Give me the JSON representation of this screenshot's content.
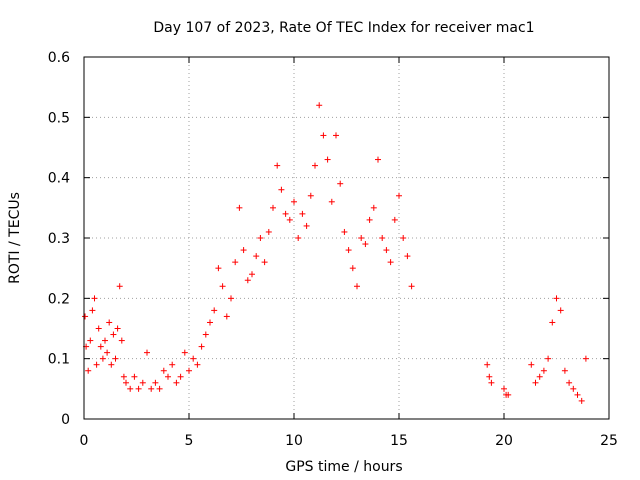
{
  "chart_data": {
    "type": "scatter",
    "title": "Day 107 of 2023, Rate Of TEC Index for receiver mac1",
    "xlabel": "GPS time / hours",
    "ylabel": "ROTI / TECUs",
    "xlim": [
      0,
      25
    ],
    "ylim": [
      0,
      0.6
    ],
    "xticks": [
      "0",
      "5",
      "10",
      "15",
      "20",
      "25"
    ],
    "yticks": [
      "0",
      "0.1",
      "0.2",
      "0.3",
      "0.4",
      "0.5",
      "0.6"
    ],
    "xtick_values": [
      0,
      5,
      10,
      15,
      20,
      25
    ],
    "ytick_values": [
      0,
      0.1,
      0.2,
      0.3,
      0.4,
      0.5,
      0.6
    ],
    "grid": true,
    "marker": "+",
    "color": "#ff0000",
    "series": [
      {
        "x": [
          0.05,
          0.1,
          0.2,
          0.3,
          0.4,
          0.5,
          0.6,
          0.7,
          0.8,
          0.9,
          1.0,
          1.1,
          1.2,
          1.3,
          1.4,
          1.5,
          1.6,
          1.7,
          1.8,
          1.9,
          2.0,
          2.2,
          2.4,
          2.6,
          2.8,
          3.0,
          3.2,
          3.4,
          3.6,
          3.8,
          4.0,
          4.2,
          4.4,
          4.6,
          4.8,
          5.0,
          5.2,
          5.4,
          5.6,
          5.8,
          6.0,
          6.2,
          6.4,
          6.6,
          6.8,
          7.0,
          7.2,
          7.4,
          7.6,
          7.8,
          8.0,
          8.2,
          8.4,
          8.6,
          8.8,
          9.0,
          9.2,
          9.4,
          9.6,
          9.8,
          10.0,
          10.2,
          10.4,
          10.6,
          10.8,
          11.0,
          11.2,
          11.4,
          11.6,
          11.8,
          12.0,
          12.2,
          12.4,
          12.6,
          12.8,
          13.0,
          13.2,
          13.4,
          13.6,
          13.8,
          14.0,
          14.2,
          14.4,
          14.6,
          14.8,
          15.0,
          15.2,
          15.4,
          15.6,
          19.2,
          19.3,
          19.4,
          20.0,
          20.1,
          20.2,
          21.3,
          21.5,
          21.7,
          21.9,
          22.1,
          22.3,
          22.5,
          22.7,
          22.9,
          23.1,
          23.3,
          23.5,
          23.7,
          23.9
        ],
        "y": [
          0.17,
          0.12,
          0.08,
          0.13,
          0.18,
          0.2,
          0.09,
          0.15,
          0.12,
          0.1,
          0.13,
          0.11,
          0.16,
          0.09,
          0.14,
          0.1,
          0.15,
          0.22,
          0.13,
          0.07,
          0.06,
          0.05,
          0.07,
          0.05,
          0.06,
          0.11,
          0.05,
          0.06,
          0.05,
          0.08,
          0.07,
          0.09,
          0.06,
          0.07,
          0.11,
          0.08,
          0.1,
          0.09,
          0.12,
          0.14,
          0.16,
          0.18,
          0.25,
          0.22,
          0.17,
          0.2,
          0.26,
          0.35,
          0.28,
          0.23,
          0.24,
          0.27,
          0.3,
          0.26,
          0.31,
          0.35,
          0.42,
          0.38,
          0.34,
          0.33,
          0.36,
          0.3,
          0.34,
          0.32,
          0.37,
          0.42,
          0.52,
          0.47,
          0.43,
          0.36,
          0.47,
          0.39,
          0.31,
          0.28,
          0.25,
          0.22,
          0.3,
          0.29,
          0.33,
          0.35,
          0.43,
          0.3,
          0.28,
          0.26,
          0.33,
          0.37,
          0.3,
          0.27,
          0.22,
          0.09,
          0.07,
          0.06,
          0.05,
          0.04,
          0.04,
          0.09,
          0.06,
          0.07,
          0.08,
          0.1,
          0.16,
          0.2,
          0.18,
          0.08,
          0.06,
          0.05,
          0.04,
          0.03,
          0.1
        ]
      }
    ]
  }
}
